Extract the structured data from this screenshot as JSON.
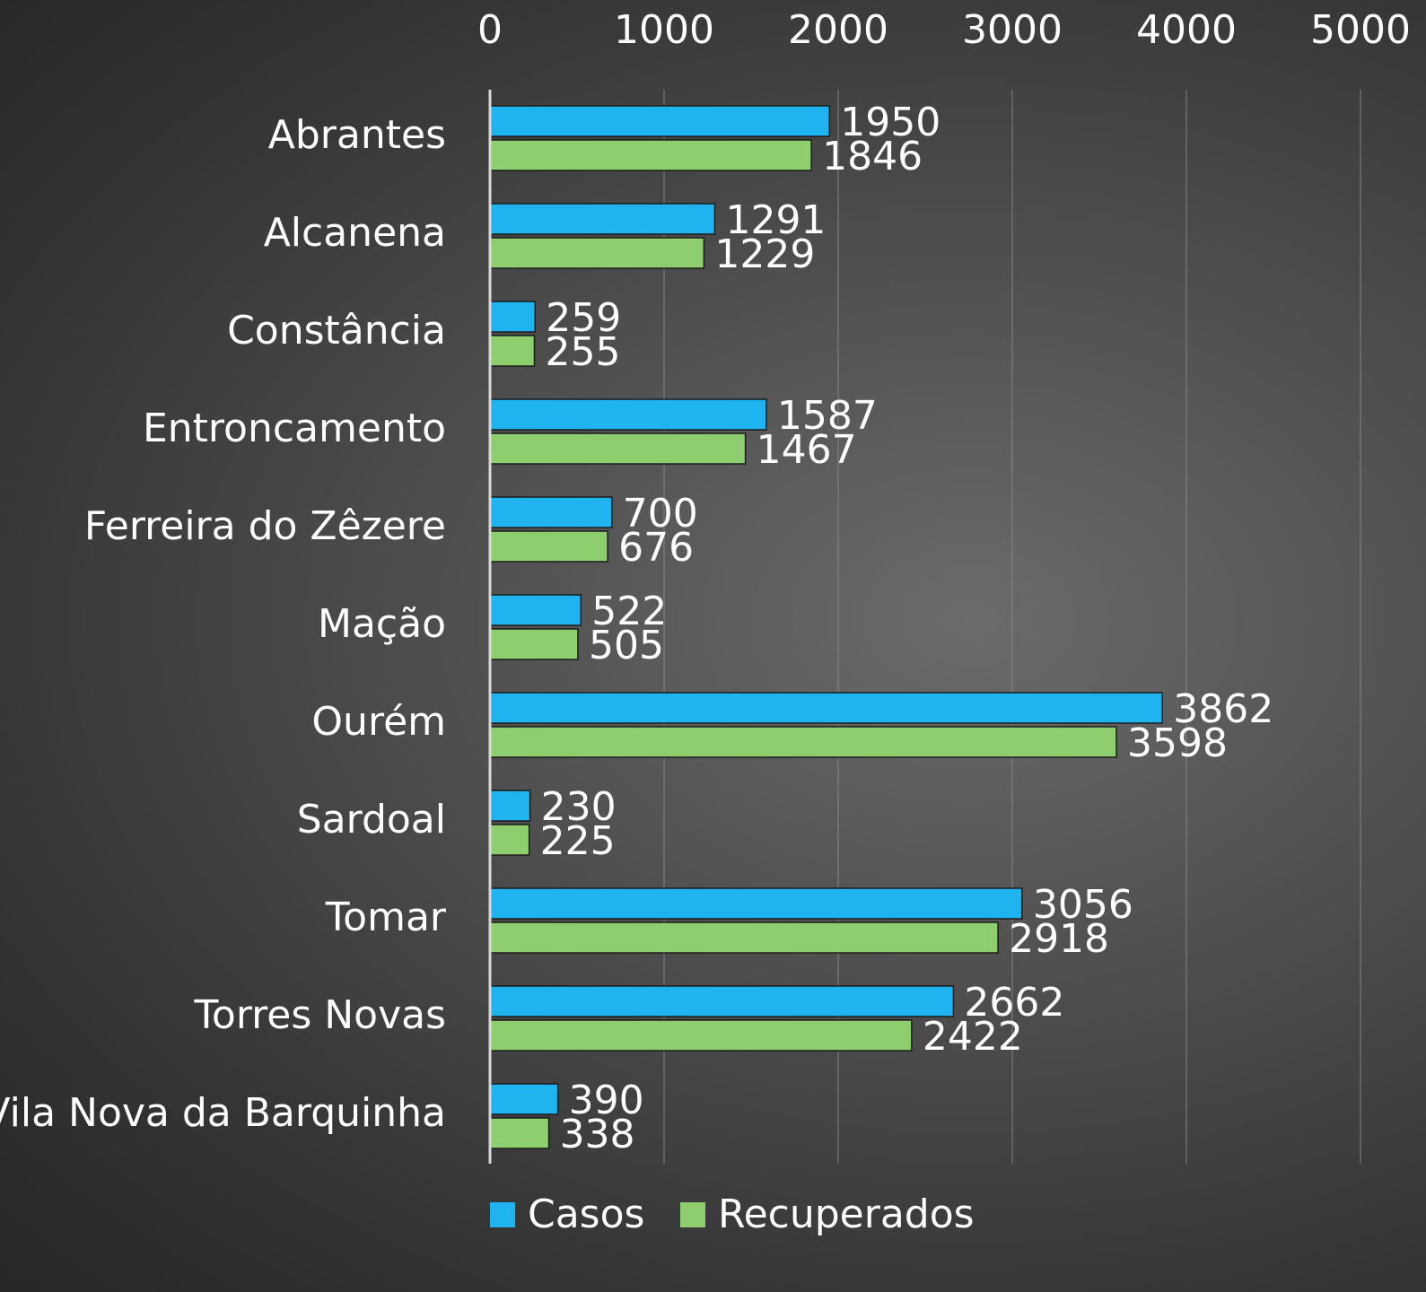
{
  "chart_data": {
    "type": "bar",
    "orientation": "horizontal",
    "title": "",
    "xlabel": "",
    "ylabel": "",
    "xlim": [
      0,
      5000
    ],
    "x_ticks": [
      "0",
      "1000",
      "2000",
      "3000",
      "4000",
      "5000"
    ],
    "grid": true,
    "legend_position": "bottom",
    "categories": [
      "Abrantes",
      "Alcanena",
      "Constância",
      "Entroncamento",
      "Ferreira do Zêzere",
      "Mação",
      "Ourém",
      "Sardoal",
      "Tomar",
      "Torres Novas",
      "Vila Nova da Barquinha"
    ],
    "series": [
      {
        "name": "Casos",
        "color": "#1fb4f0",
        "values": [
          1950,
          1291,
          259,
          1587,
          700,
          522,
          3862,
          230,
          3056,
          2662,
          390
        ]
      },
      {
        "name": "Recuperados",
        "color": "#8fce6f",
        "values": [
          1846,
          1229,
          255,
          1467,
          676,
          505,
          3598,
          225,
          2918,
          2422,
          338
        ]
      }
    ]
  }
}
